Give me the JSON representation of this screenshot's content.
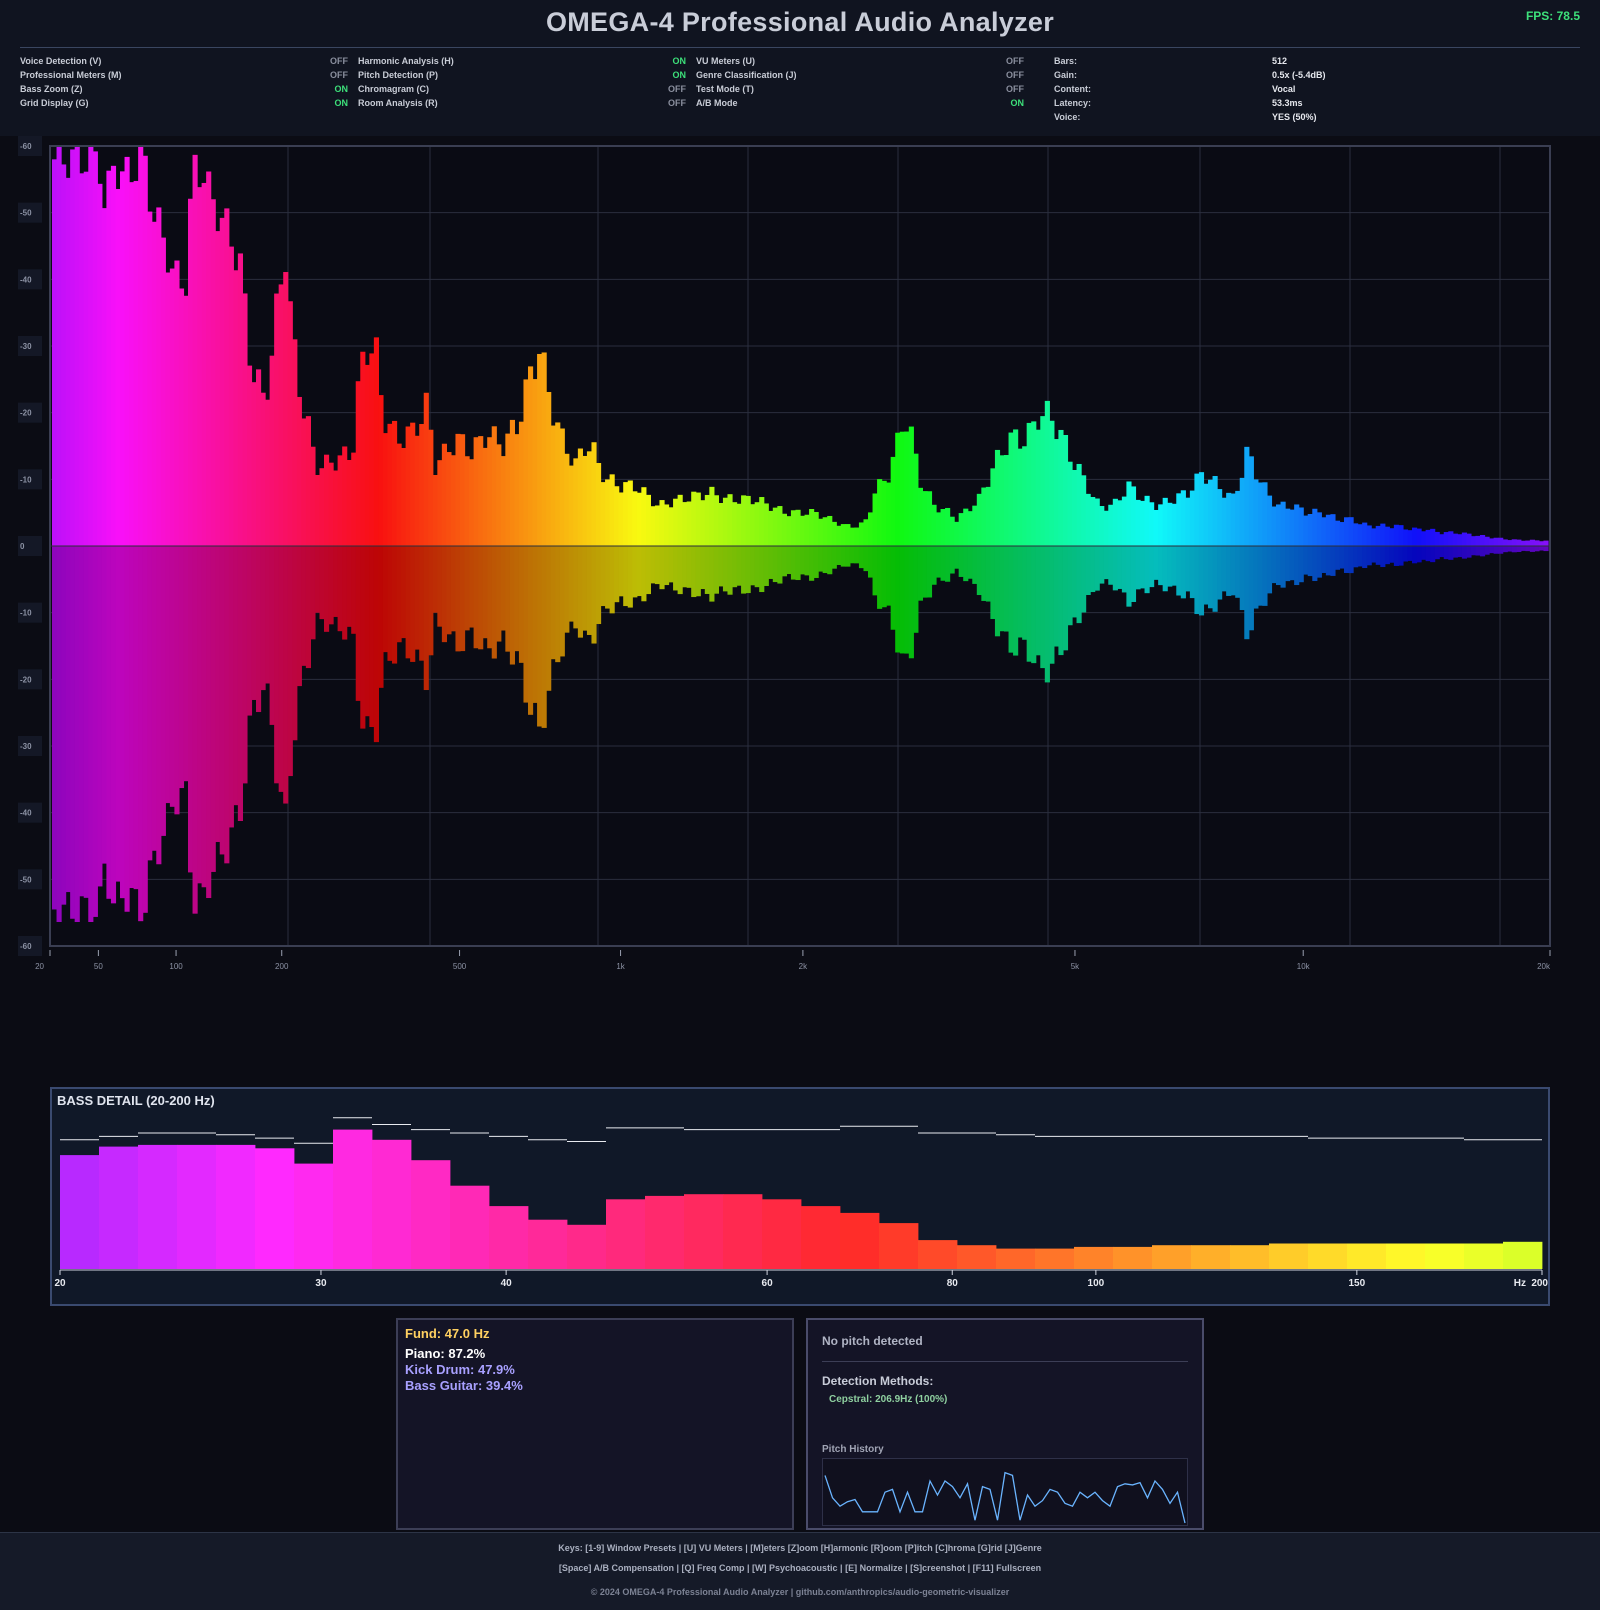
{
  "header": {
    "title": "OMEGA-4 Professional Audio Analyzer",
    "fps": "FPS: 78.5",
    "columns": [
      {
        "items": [
          {
            "label": "Voice Detection (V)",
            "state": "OFF"
          },
          {
            "label": "Professional Meters (M)",
            "state": "OFF"
          },
          {
            "label": "Bass Zoom (Z)",
            "state": "ON"
          },
          {
            "label": "Grid Display (G)",
            "state": "ON"
          }
        ]
      },
      {
        "items": [
          {
            "label": "Harmonic Analysis (H)",
            "state": "ON"
          },
          {
            "label": "Pitch Detection (P)",
            "state": "ON"
          },
          {
            "label": "Chromagram (C)",
            "state": "OFF"
          },
          {
            "label": "Room Analysis (R)",
            "state": "OFF"
          }
        ]
      },
      {
        "items": [
          {
            "label": "VU Meters (U)",
            "state": "OFF"
          },
          {
            "label": "Genre Classification (J)",
            "state": "OFF"
          },
          {
            "label": "Test Mode (T)",
            "state": "OFF"
          },
          {
            "label": "A/B Mode",
            "state": "ON"
          }
        ]
      }
    ],
    "info": [
      {
        "label": "Bars:",
        "value": "512"
      },
      {
        "label": "Gain:",
        "value": "0.5x (-5.4dB)"
      },
      {
        "label": "Content:",
        "value": "Vocal"
      },
      {
        "label": "Latency:",
        "value": "53.3ms"
      },
      {
        "label": "Voice:",
        "value": "YES (50%)"
      }
    ]
  },
  "colors": {
    "on": "#3de07a",
    "off": "#8a8f9e",
    "grid": "#2a2e3e"
  },
  "chart_data": [
    {
      "type": "bar",
      "id": "main-spectrum",
      "description": "mirrored spectrum; values are bar amplitudes in dB above the 0 centre line, mirrored below",
      "y_ticks": [
        "-60",
        "-50",
        "-40",
        "-30",
        "-20",
        "-10",
        "0",
        "-10",
        "-20",
        "-30",
        "-40",
        "-50",
        "-60"
      ],
      "x_ticks": [
        {
          "hz": 20,
          "label": "20"
        },
        {
          "hz": 50,
          "label": "50"
        },
        {
          "hz": 100,
          "label": "100"
        },
        {
          "hz": 200,
          "label": "200"
        },
        {
          "hz": 500,
          "label": "500"
        },
        {
          "hz": 1000,
          "label": "1k"
        },
        {
          "hz": 2000,
          "label": "2k"
        },
        {
          "hz": 5000,
          "label": "5k"
        },
        {
          "hz": 10000,
          "label": "10k"
        },
        {
          "hz": 20000,
          "label": "20k"
        }
      ],
      "ylim": [
        0,
        60
      ],
      "grid": true,
      "envelope": [
        [
          0,
          58
        ],
        [
          0.03,
          58
        ],
        [
          0.034,
          50
        ],
        [
          0.04,
          58
        ],
        [
          0.045,
          55
        ],
        [
          0.06,
          58
        ],
        [
          0.066,
          50
        ],
        [
          0.075,
          45
        ],
        [
          0.08,
          40
        ],
        [
          0.09,
          40
        ],
        [
          0.092,
          57
        ],
        [
          0.1,
          56
        ],
        [
          0.105,
          52
        ],
        [
          0.115,
          48
        ],
        [
          0.125,
          42
        ],
        [
          0.13,
          30
        ],
        [
          0.135,
          25
        ],
        [
          0.14,
          22
        ],
        [
          0.145,
          27
        ],
        [
          0.15,
          37
        ],
        [
          0.155,
          44
        ],
        [
          0.16,
          30
        ],
        [
          0.165,
          23
        ],
        [
          0.17,
          18
        ],
        [
          0.175,
          12
        ],
        [
          0.18,
          12
        ],
        [
          0.19,
          13
        ],
        [
          0.2,
          14
        ],
        [
          0.205,
          26
        ],
        [
          0.21,
          30
        ],
        [
          0.215,
          30
        ],
        [
          0.22,
          20
        ],
        [
          0.23,
          16
        ],
        [
          0.24,
          17
        ],
        [
          0.25,
          21
        ],
        [
          0.255,
          12
        ],
        [
          0.27,
          16
        ],
        [
          0.28,
          14
        ],
        [
          0.29,
          17
        ],
        [
          0.3,
          15
        ],
        [
          0.31,
          18
        ],
        [
          0.32,
          26
        ],
        [
          0.325,
          30
        ],
        [
          0.33,
          24
        ],
        [
          0.34,
          16
        ],
        [
          0.345,
          14
        ],
        [
          0.35,
          12
        ],
        [
          0.355,
          15
        ],
        [
          0.36,
          15
        ],
        [
          0.365,
          12
        ],
        [
          0.37,
          10
        ],
        [
          0.38,
          9
        ],
        [
          0.39,
          9
        ],
        [
          0.4,
          7
        ],
        [
          0.405,
          6
        ],
        [
          0.42,
          7
        ],
        [
          0.44,
          8
        ],
        [
          0.45,
          7
        ],
        [
          0.46,
          7
        ],
        [
          0.47,
          7
        ],
        [
          0.48,
          6
        ],
        [
          0.49,
          5
        ],
        [
          0.5,
          5
        ],
        [
          0.51,
          5
        ],
        [
          0.52,
          4
        ],
        [
          0.53,
          3
        ],
        [
          0.54,
          3
        ],
        [
          0.545,
          4
        ],
        [
          0.55,
          8
        ],
        [
          0.56,
          11
        ],
        [
          0.565,
          15
        ],
        [
          0.57,
          20
        ],
        [
          0.575,
          16
        ],
        [
          0.58,
          10
        ],
        [
          0.59,
          6
        ],
        [
          0.6,
          5
        ],
        [
          0.605,
          4
        ],
        [
          0.61,
          5
        ],
        [
          0.62,
          7
        ],
        [
          0.63,
          12
        ],
        [
          0.64,
          16
        ],
        [
          0.65,
          16
        ],
        [
          0.655,
          17
        ],
        [
          0.66,
          20
        ],
        [
          0.67,
          19
        ],
        [
          0.68,
          14
        ],
        [
          0.69,
          10
        ],
        [
          0.7,
          6
        ],
        [
          0.71,
          6
        ],
        [
          0.72,
          9
        ],
        [
          0.73,
          7
        ],
        [
          0.74,
          6
        ],
        [
          0.75,
          7
        ],
        [
          0.76,
          8
        ],
        [
          0.77,
          11
        ],
        [
          0.78,
          9
        ],
        [
          0.79,
          7
        ],
        [
          0.795,
          10
        ],
        [
          0.8,
          14
        ],
        [
          0.81,
          9
        ],
        [
          0.82,
          6
        ],
        [
          0.83,
          6
        ],
        [
          0.84,
          5
        ],
        [
          0.85,
          5
        ],
        [
          0.86,
          4
        ],
        [
          0.87,
          4
        ],
        [
          0.88,
          3
        ],
        [
          0.89,
          3
        ],
        [
          0.9,
          3
        ],
        [
          0.91,
          2.5
        ],
        [
          0.92,
          2.5
        ],
        [
          0.93,
          2
        ],
        [
          0.94,
          2
        ],
        [
          0.95,
          1.7
        ],
        [
          0.96,
          1.4
        ],
        [
          0.97,
          1.1
        ],
        [
          0.98,
          0.9
        ],
        [
          1,
          0.8
        ]
      ]
    },
    {
      "type": "bar",
      "id": "bass-detail",
      "title": "BASS DETAIL (20-200 Hz)",
      "x_ticks": [
        {
          "hz": 20,
          "label": "20"
        },
        {
          "hz": 30,
          "label": "30"
        },
        {
          "hz": 40,
          "label": "40"
        },
        {
          "hz": 60,
          "label": "60"
        },
        {
          "hz": 80,
          "label": "80"
        },
        {
          "hz": 100,
          "label": "100"
        },
        {
          "hz": 150,
          "label": "150"
        },
        {
          "hz": 200,
          "label": "200"
        }
      ],
      "unit": "Hz",
      "ylim": [
        0,
        1
      ],
      "values": [
        0.67,
        0.72,
        0.73,
        0.73,
        0.73,
        0.71,
        0.62,
        0.82,
        0.76,
        0.64,
        0.49,
        0.37,
        0.29,
        0.26,
        0.41,
        0.43,
        0.44,
        0.44,
        0.41,
        0.37,
        0.33,
        0.27,
        0.17,
        0.14,
        0.12,
        0.12,
        0.13,
        0.13,
        0.14,
        0.14,
        0.14,
        0.15,
        0.15,
        0.15,
        0.15,
        0.15,
        0.15,
        0.16
      ],
      "peaks": [
        0.76,
        0.78,
        0.8,
        0.8,
        0.79,
        0.77,
        0.74,
        0.89,
        0.85,
        0.82,
        0.8,
        0.78,
        0.76,
        0.75,
        0.83,
        0.83,
        0.82,
        0.82,
        0.82,
        0.82,
        0.84,
        0.84,
        0.8,
        0.8,
        0.79,
        0.78,
        0.78,
        0.78,
        0.78,
        0.78,
        0.78,
        0.78,
        0.77,
        0.77,
        0.77,
        0.77,
        0.76,
        0.76
      ]
    },
    {
      "type": "line",
      "id": "pitch-history",
      "title": "Pitch History",
      "ylim": [
        0,
        1
      ],
      "values": [
        0.85,
        0.45,
        0.3,
        0.38,
        0.42,
        0.2,
        0.2,
        0.2,
        0.55,
        0.6,
        0.2,
        0.55,
        0.2,
        0.2,
        0.75,
        0.5,
        0.75,
        0.65,
        0.45,
        0.7,
        0.05,
        0.65,
        0.6,
        0.05,
        0.9,
        0.85,
        0.05,
        0.5,
        0.3,
        0.4,
        0.6,
        0.55,
        0.35,
        0.3,
        0.55,
        0.45,
        0.55,
        0.4,
        0.3,
        0.65,
        0.7,
        0.68,
        0.72,
        0.45,
        0.75,
        0.6,
        0.35,
        0.55,
        0.0
      ]
    }
  ],
  "genre": {
    "fund": "Fund: 47.0 Hz",
    "top": "Piano: 87.2%",
    "others": [
      "Kick Drum: 47.9%",
      "Bass Guitar: 39.4%"
    ]
  },
  "pitch": {
    "status": "No pitch detected",
    "methods_title": "Detection Methods:",
    "methods": [
      "Cepstral: 206.9Hz (100%)"
    ],
    "history_label": "Pitch History"
  },
  "footer": {
    "line1": "Keys: [1-9] Window Presets | [U] VU Meters | [M]eters [Z]oom [H]armonic [R]oom [P]itch [C]hroma [G]rid [J]Genre",
    "line2": "[Space] A/B Compensation | [Q] Freq Comp | [W] Psychoacoustic | [E] Normalize | [S]creenshot | [F11] Fullscreen",
    "copyright": "© 2024 OMEGA-4 Professional Audio Analyzer | github.com/anthropics/audio-geometric-visualizer"
  }
}
